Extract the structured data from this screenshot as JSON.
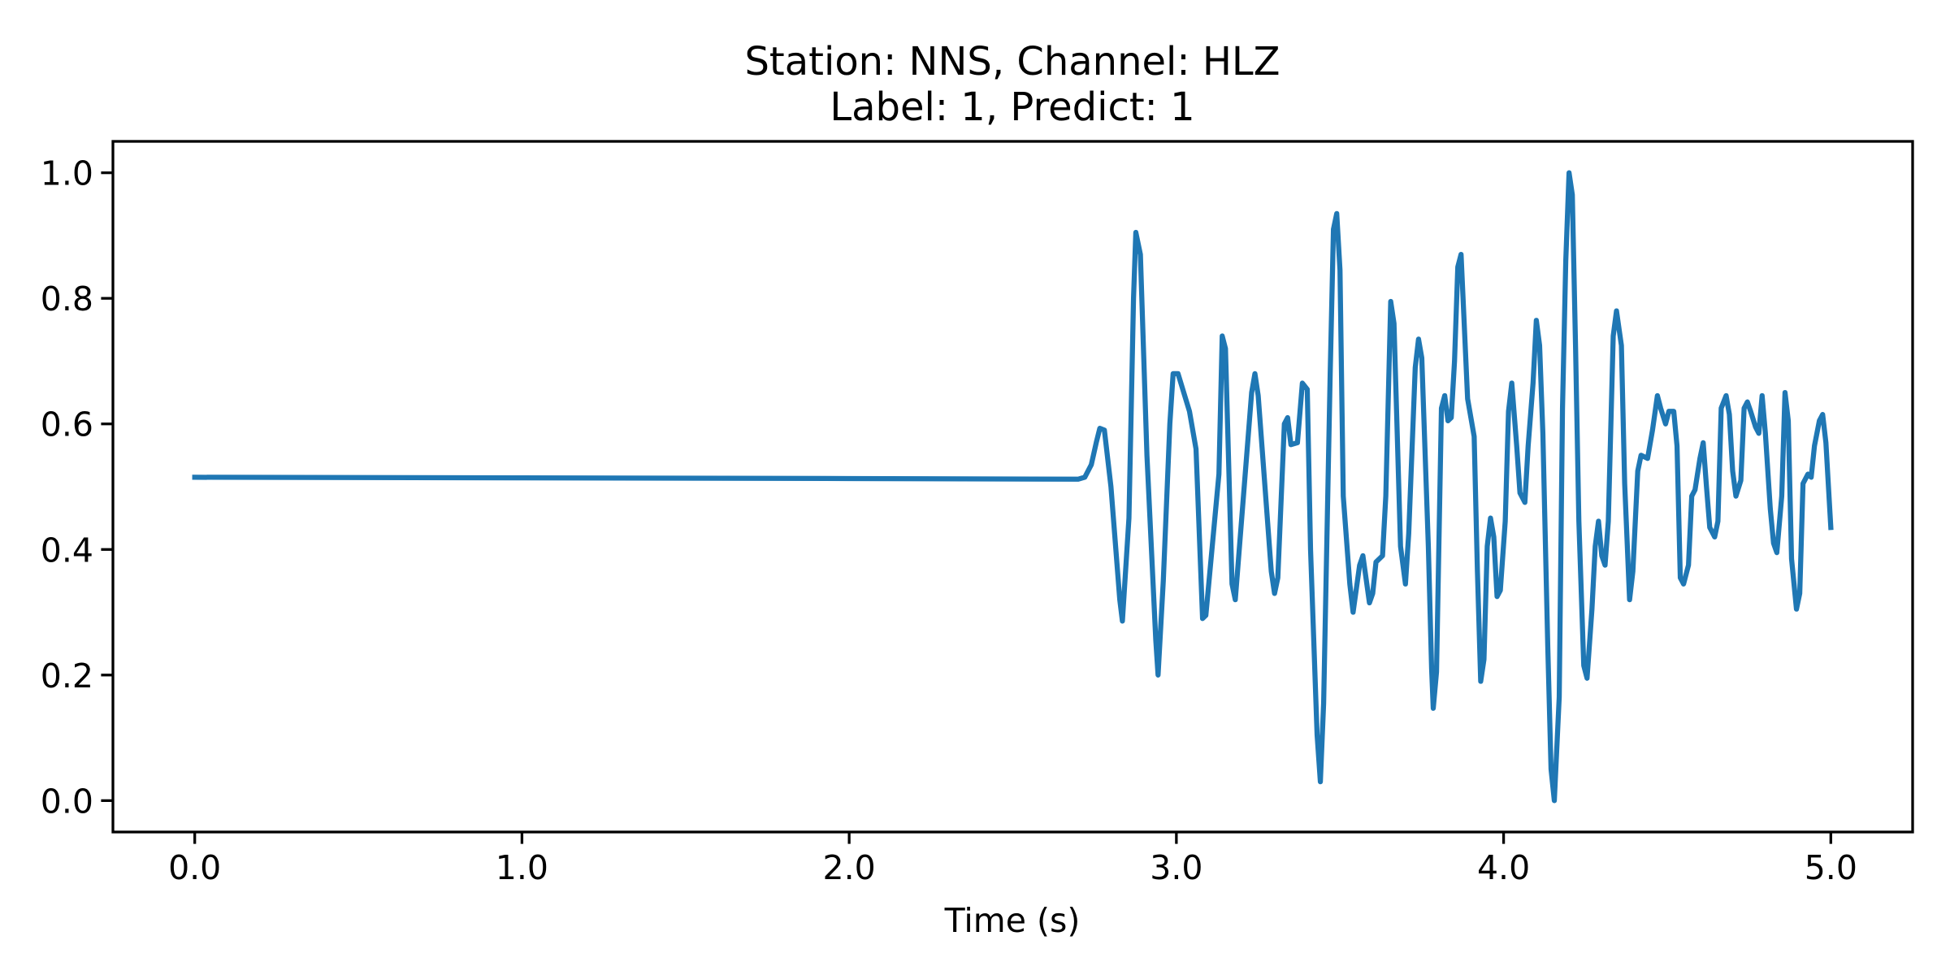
{
  "chart_data": {
    "type": "line",
    "title": [
      "Station: NNS, Channel: HLZ",
      "Label: 1, Predict: 1"
    ],
    "x_label": "Time (s)",
    "xlim": [
      -0.25,
      5.25
    ],
    "ylim": [
      -0.05,
      1.05
    ],
    "xticks": [
      {
        "value": 0,
        "label": "0.0"
      },
      {
        "value": 1,
        "label": "1.0"
      },
      {
        "value": 2,
        "label": "2.0"
      },
      {
        "value": 3,
        "label": "3.0"
      },
      {
        "value": 4,
        "label": "4.0"
      },
      {
        "value": 5,
        "label": "5.0"
      }
    ],
    "yticks": [
      {
        "value": 0,
        "label": "0.0"
      },
      0.2,
      0.4,
      0.6,
      0.8,
      {
        "value": 1,
        "label": "1.0"
      }
    ],
    "grid": false,
    "series": [
      {
        "color": "#1f77b4",
        "x": [
          0,
          1.0,
          2.0,
          2.7,
          2.72,
          2.74,
          2.755,
          2.766,
          2.78,
          2.8,
          2.827,
          2.835,
          2.855,
          2.869,
          2.876,
          2.89,
          2.91,
          2.937,
          2.944,
          2.96,
          2.98,
          2.99,
          3.005,
          3.04,
          3.06,
          3.08,
          3.09,
          3.13,
          3.14,
          3.15,
          3.17,
          3.18,
          3.23,
          3.24,
          3.25,
          3.29,
          3.3,
          3.31,
          3.33,
          3.34,
          3.35,
          3.37,
          3.385,
          3.4,
          3.41,
          3.43,
          3.44,
          3.45,
          3.47,
          3.48,
          3.49,
          3.5,
          3.51,
          3.53,
          3.54,
          3.56,
          3.57,
          3.59,
          3.6,
          3.61,
          3.63,
          3.64,
          3.655,
          3.665,
          3.685,
          3.7,
          3.71,
          3.73,
          3.74,
          3.75,
          3.77,
          3.78,
          3.785,
          3.795,
          3.81,
          3.82,
          3.83,
          3.84,
          3.85,
          3.86,
          3.87,
          3.89,
          3.91,
          3.92,
          3.93,
          3.94,
          3.95,
          3.96,
          3.97,
          3.98,
          3.99,
          4.005,
          4.015,
          4.025,
          4.04,
          4.05,
          4.065,
          4.075,
          4.09,
          4.1,
          4.11,
          4.12,
          4.135,
          4.145,
          4.155,
          4.17,
          4.18,
          4.19,
          4.2,
          4.21,
          4.22,
          4.23,
          4.245,
          4.255,
          4.27,
          4.28,
          4.29,
          4.3,
          4.31,
          4.32,
          4.335,
          4.345,
          4.36,
          4.37,
          4.385,
          4.395,
          4.41,
          4.42,
          4.44,
          4.455,
          4.47,
          4.48,
          4.495,
          4.505,
          4.52,
          4.53,
          4.54,
          4.55,
          4.565,
          4.575,
          4.585,
          4.6,
          4.61,
          4.62,
          4.63,
          4.645,
          4.655,
          4.665,
          4.68,
          4.69,
          4.7,
          4.71,
          4.725,
          4.735,
          4.745,
          4.755,
          4.77,
          4.78,
          4.79,
          4.8,
          4.815,
          4.825,
          4.835,
          4.85,
          4.86,
          4.87,
          4.88,
          4.895,
          4.905,
          4.915,
          4.93,
          4.94,
          4.95,
          4.965,
          4.975,
          4.985,
          5.0
        ],
        "values": [
          0.515,
          0.514,
          0.513,
          0.512,
          0.515,
          0.535,
          0.57,
          0.593,
          0.59,
          0.5,
          0.32,
          0.286,
          0.45,
          0.8,
          0.905,
          0.87,
          0.55,
          0.256,
          0.2,
          0.35,
          0.6,
          0.68,
          0.68,
          0.62,
          0.56,
          0.29,
          0.295,
          0.52,
          0.74,
          0.72,
          0.345,
          0.32,
          0.65,
          0.68,
          0.645,
          0.365,
          0.33,
          0.355,
          0.6,
          0.61,
          0.567,
          0.57,
          0.665,
          0.655,
          0.4,
          0.105,
          0.03,
          0.155,
          0.68,
          0.91,
          0.935,
          0.845,
          0.485,
          0.345,
          0.3,
          0.375,
          0.39,
          0.315,
          0.33,
          0.38,
          0.39,
          0.485,
          0.795,
          0.76,
          0.405,
          0.345,
          0.425,
          0.69,
          0.735,
          0.705,
          0.405,
          0.21,
          0.147,
          0.205,
          0.625,
          0.645,
          0.605,
          0.61,
          0.7,
          0.85,
          0.87,
          0.64,
          0.58,
          0.365,
          0.19,
          0.225,
          0.405,
          0.45,
          0.42,
          0.325,
          0.335,
          0.445,
          0.62,
          0.665,
          0.565,
          0.49,
          0.475,
          0.565,
          0.665,
          0.765,
          0.725,
          0.585,
          0.245,
          0.05,
          0.0,
          0.165,
          0.625,
          0.86,
          1.0,
          0.965,
          0.72,
          0.445,
          0.215,
          0.195,
          0.305,
          0.405,
          0.445,
          0.39,
          0.375,
          0.445,
          0.74,
          0.78,
          0.725,
          0.505,
          0.32,
          0.365,
          0.525,
          0.55,
          0.545,
          0.59,
          0.645,
          0.625,
          0.6,
          0.62,
          0.62,
          0.565,
          0.355,
          0.345,
          0.375,
          0.485,
          0.495,
          0.545,
          0.57,
          0.5,
          0.435,
          0.42,
          0.445,
          0.625,
          0.645,
          0.615,
          0.525,
          0.485,
          0.51,
          0.625,
          0.635,
          0.62,
          0.595,
          0.585,
          0.645,
          0.585,
          0.465,
          0.41,
          0.395,
          0.485,
          0.65,
          0.605,
          0.385,
          0.305,
          0.33,
          0.505,
          0.52,
          0.515,
          0.565,
          0.605,
          0.615,
          0.57,
          0.435
        ]
      }
    ]
  }
}
